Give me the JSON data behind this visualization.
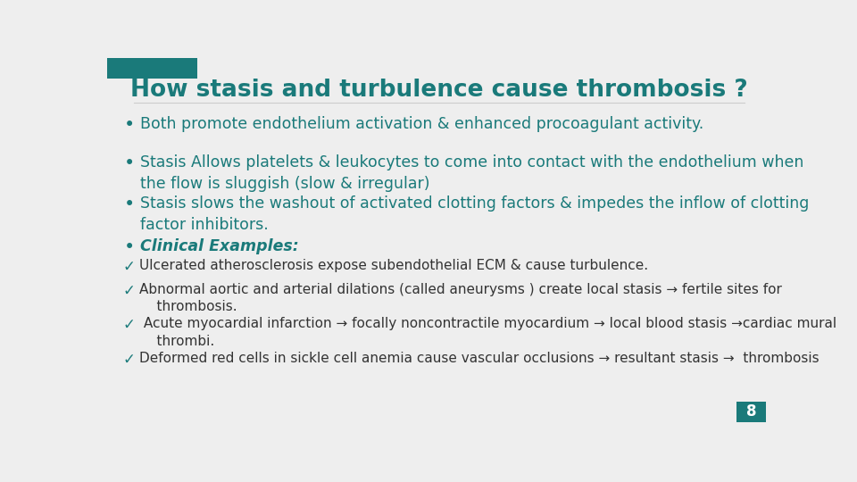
{
  "title": "How stasis and turbulence cause thrombosis ?",
  "title_color": "#1a7a7a",
  "background_color": "#eeeeee",
  "header_bar_color": "#1a7a7a",
  "teal_color": "#1a7a7a",
  "dark_text_color": "#333333",
  "page_number": "8",
  "page_num_bg": "#1a7a7a",
  "page_num_text": "#ffffff",
  "bullet_points": [
    "Both promote endothelium activation & enhanced procoagulant activity.",
    "Stasis Allows platelets & leukocytes to come into contact with the endothelium when\nthe flow is sluggish (slow & irregular)",
    "Stasis slows the washout of activated clotting factors & impedes the inflow of clotting\nfactor inhibitors.",
    "Clinical Examples:"
  ],
  "check_points": [
    "Ulcerated atherosclerosis expose subendothelial ECM & cause turbulence.",
    "Abnormal aortic and arterial dilations (called aneurysms ) create local stasis → fertile sites for\n    thrombosis.",
    " Acute myocardial infarction → focally noncontractile myocardium → local blood stasis →cardiac mural\n    thrombi.",
    "Deformed red cells in sickle cell anemia cause vascular occlusions → resultant stasis →  thrombosis"
  ]
}
